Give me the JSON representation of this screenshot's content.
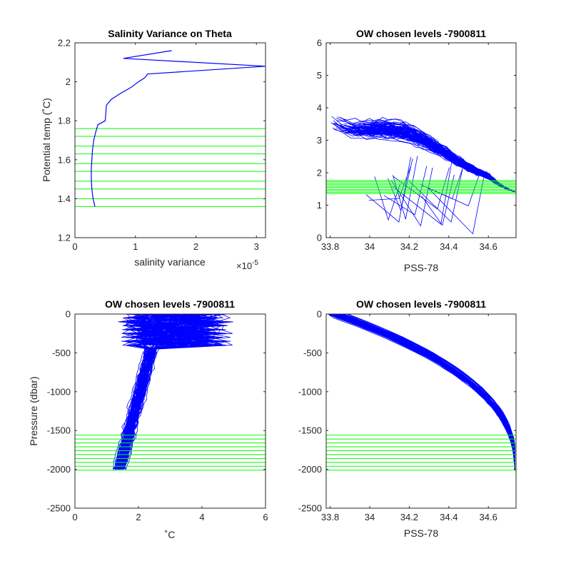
{
  "chart_data": [
    {
      "type": "line",
      "title": "Salinity Variance on Theta",
      "xlabel": "salinity variance",
      "ylabel": "Potential temp (˚C)",
      "xlim": [
        0,
        3.15
      ],
      "ylim": [
        1.2,
        2.2
      ],
      "x_exponent_label": "×10",
      "x_exponent_power": "-5",
      "x_ticks": [
        0,
        1,
        2,
        3
      ],
      "y_ticks": [
        1.2,
        1.4,
        1.6,
        1.8,
        2.0,
        2.2
      ],
      "x_tick_labels": [
        "0",
        "1",
        "2",
        "3"
      ],
      "y_tick_labels": [
        "1.2",
        "1.4",
        "1.6",
        "1.8",
        "2",
        "2.2"
      ],
      "series_color": "#0000ff",
      "level_color": "#00ff00",
      "variance_profile": {
        "x": [
          0.33,
          0.3,
          0.28,
          0.27,
          0.27,
          0.28,
          0.29,
          0.31,
          0.35,
          0.38,
          0.5,
          0.52,
          0.6,
          0.75,
          0.92,
          1.05,
          1.15,
          1.18,
          1.2,
          3.15,
          0.8,
          1.6
        ],
        "y": [
          1.36,
          1.4,
          1.45,
          1.5,
          1.55,
          1.6,
          1.65,
          1.7,
          1.75,
          1.78,
          1.8,
          1.88,
          1.91,
          1.94,
          1.97,
          2.0,
          2.02,
          2.03,
          2.04,
          2.08,
          2.12,
          2.16
        ]
      },
      "chosen_levels": [
        1.36,
        1.4,
        1.45,
        1.49,
        1.54,
        1.58,
        1.63,
        1.67,
        1.72,
        1.76
      ]
    },
    {
      "type": "line",
      "title": "OW chosen levels -7900811",
      "xlabel": "PSS-78",
      "ylabel": "",
      "xlim": [
        33.78,
        34.74
      ],
      "ylim": [
        0,
        6
      ],
      "x_ticks": [
        33.8,
        34.0,
        34.2,
        34.4,
        34.6
      ],
      "y_ticks": [
        0,
        1,
        2,
        3,
        4,
        5,
        6
      ],
      "x_tick_labels": [
        "33.8",
        "34",
        "34.2",
        "34.4",
        "34.6"
      ],
      "y_tick_labels": [
        "0",
        "1",
        "2",
        "3",
        "4",
        "5",
        "6"
      ],
      "series_color": "#0000ff",
      "level_color": "#00ff00",
      "chosen_levels": [
        1.36,
        1.4,
        1.45,
        1.49,
        1.54,
        1.58,
        1.63,
        1.67,
        1.72,
        1.76
      ]
    },
    {
      "type": "line",
      "title": "OW chosen levels -7900811",
      "xlabel": "˚C",
      "ylabel": "Pressure (dbar)",
      "xlim": [
        0,
        6
      ],
      "ylim": [
        -2500,
        0
      ],
      "x_ticks": [
        0,
        2,
        4,
        6
      ],
      "y_ticks": [
        -2500,
        -2000,
        -1500,
        -1000,
        -500,
        0
      ],
      "x_tick_labels": [
        "0",
        "2",
        "4",
        "6"
      ],
      "y_tick_labels": [
        "-2500",
        "-2000",
        "-1500",
        "-1000",
        "-500",
        "0"
      ],
      "series_color": "#0000ff",
      "level_color": "#00ff00",
      "chosen_levels": [
        -1560,
        -1610,
        -1660,
        -1710,
        -1760,
        -1810,
        -1860,
        -1910,
        -1960,
        -2010
      ]
    },
    {
      "type": "line",
      "title": "OW chosen levels -7900811",
      "xlabel": "PSS-78",
      "ylabel": "",
      "xlim": [
        33.78,
        34.74
      ],
      "ylim": [
        -2500,
        0
      ],
      "x_ticks": [
        33.8,
        34.0,
        34.2,
        34.4,
        34.6
      ],
      "y_ticks": [
        -2500,
        -2000,
        -1500,
        -1000,
        -500,
        0
      ],
      "x_tick_labels": [
        "33.8",
        "34",
        "34.2",
        "34.4",
        "34.6"
      ],
      "y_tick_labels": [
        "-2500",
        "-2000",
        "-1500",
        "-1000",
        "-500",
        "0"
      ],
      "series_color": "#0000ff",
      "level_color": "#00ff00",
      "chosen_levels": [
        -1560,
        -1610,
        -1660,
        -1710,
        -1760,
        -1810,
        -1860,
        -1910,
        -1960,
        -2010
      ]
    }
  ]
}
